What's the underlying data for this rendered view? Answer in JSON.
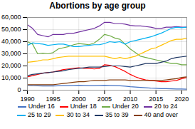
{
  "chart_data": {
    "type": "line",
    "title": "Abortions by age group",
    "x": [
      1990,
      1991,
      1992,
      1993,
      1994,
      1995,
      1996,
      1997,
      1998,
      1999,
      2000,
      2001,
      2002,
      2003,
      2004,
      2005,
      2006,
      2007,
      2008,
      2009,
      2010,
      2011,
      2012,
      2013,
      2014,
      2015,
      2016,
      2017,
      2018,
      2019,
      2020,
      2021
    ],
    "series": [
      {
        "name": "Under 16",
        "color": "#4472C4",
        "values": [
          3900,
          3700,
          3600,
          3500,
          3400,
          3500,
          3600,
          3700,
          3800,
          3900,
          4000,
          3900,
          3800,
          3800,
          3900,
          4000,
          3900,
          3800,
          3600,
          3300,
          2900,
          2600,
          2300,
          2000,
          1700,
          1500,
          1300,
          1200,
          1100,
          1000,
          900,
          800
        ]
      },
      {
        "name": "Under 18",
        "color": "#FF0000",
        "values": [
          11000,
          12000,
          13000,
          14000,
          14500,
          15000,
          16000,
          17000,
          17500,
          18000,
          18500,
          18000,
          18000,
          17500,
          18000,
          21000,
          20500,
          19500,
          17500,
          15500,
          13000,
          11000,
          9500,
          8500,
          8000,
          7500,
          7000,
          7000,
          7500,
          8000,
          9500,
          10500
        ]
      },
      {
        "name": "Under 20",
        "color": "#70AD47",
        "values": [
          40000,
          38000,
          30000,
          30500,
          30000,
          31000,
          34000,
          35000,
          36000,
          37500,
          38500,
          38000,
          37500,
          39000,
          42000,
          46000,
          45000,
          43000,
          42000,
          38000,
          34000,
          31000,
          28000,
          27000,
          26000,
          25000,
          24000,
          23000,
          22000,
          22000,
          21000,
          21000
        ]
      },
      {
        "name": "20 to 24",
        "color": "#7030A0",
        "values": [
          54000,
          51000,
          46000,
          45000,
          44000,
          46000,
          46000,
          46000,
          47000,
          47000,
          48000,
          49000,
          50000,
          51000,
          53000,
          56000,
          56000,
          55000,
          55000,
          54500,
          53500,
          53000,
          53000,
          52500,
          52000,
          51000,
          51000,
          52000,
          52000,
          52500,
          52000,
          52000
        ]
      },
      {
        "name": "25 to 29",
        "color": "#00B0F0",
        "values": [
          37000,
          39000,
          38500,
          38000,
          37000,
          37500,
          38000,
          38000,
          37000,
          36000,
          36000,
          36500,
          37000,
          37500,
          37500,
          38500,
          40000,
          39500,
          40000,
          38000,
          40000,
          41000,
          42000,
          43000,
          44000,
          45500,
          47000,
          49000,
          51000,
          52000,
          51500,
          52000
        ]
      },
      {
        "name": "30 to 34",
        "color": "#FFC000",
        "values": [
          23000,
          23500,
          24000,
          25000,
          25000,
          26000,
          27000,
          27500,
          28000,
          28000,
          28000,
          28000,
          28000,
          28000,
          28000,
          28000,
          27000,
          26000,
          27000,
          26000,
          27000,
          28000,
          30000,
          32000,
          34000,
          35000,
          37000,
          39000,
          41000,
          42000,
          42000,
          43000
        ]
      },
      {
        "name": "35 to 39",
        "color": "#203864",
        "values": [
          12000,
          13000,
          13500,
          14000,
          14500,
          15000,
          15500,
          16000,
          17000,
          17500,
          18000,
          18500,
          19000,
          19000,
          19000,
          19500,
          20000,
          20000,
          20000,
          19500,
          19000,
          20000,
          21000,
          22000,
          22000,
          22000,
          23000,
          24000,
          26000,
          27000,
          27500,
          28000
        ]
      },
      {
        "name": "40 and over",
        "color": "#843C0C",
        "values": [
          4500,
          4500,
          4500,
          4500,
          4500,
          4500,
          5000,
          5500,
          6000,
          6500,
          7000,
          7000,
          7500,
          8000,
          8000,
          8000,
          8500,
          8500,
          8500,
          8500,
          8000,
          8000,
          8000,
          8000,
          8000,
          8000,
          8000,
          8500,
          9000,
          9500,
          10500,
          11000
        ]
      }
    ],
    "xlim": [
      1990,
      2021
    ],
    "ylim": [
      0,
      60000
    ],
    "xticks": [
      1990,
      1995,
      2000,
      2005,
      2010,
      2015,
      2020
    ],
    "yticks": [
      0,
      {
        "value": 10000,
        "label": "10,000"
      },
      {
        "value": 20000,
        "label": "20,000"
      },
      {
        "value": 30000,
        "label": "30,000"
      },
      {
        "value": 40000,
        "label": "40,000"
      },
      {
        "value": 50000,
        "label": "50,000"
      },
      {
        "value": 60000,
        "label": "60,000"
      }
    ],
    "grid": true,
    "legend": "bottom"
  }
}
